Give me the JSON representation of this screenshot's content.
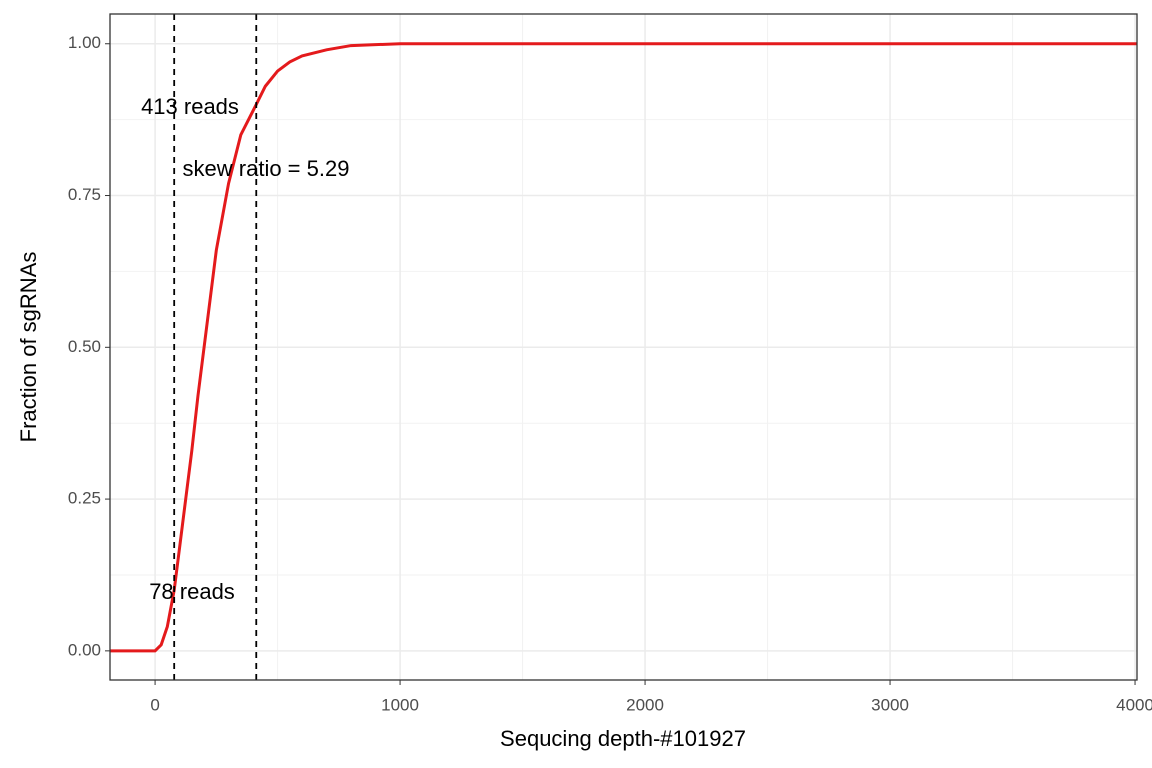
{
  "chart_data": {
    "type": "line",
    "x_label": "Sequcing depth-#101927",
    "y_label": "Fraction of sgRNAs",
    "x": [
      -184,
      0,
      25,
      50,
      78,
      100,
      125,
      150,
      175,
      200,
      250,
      300,
      350,
      413,
      450,
      500,
      550,
      600,
      700,
      800,
      1000,
      1700,
      4008
    ],
    "series": [
      {
        "color": "#e41a1c",
        "values": [
          0,
          0,
          0.01,
          0.04,
          0.1,
          0.17,
          0.25,
          0.33,
          0.42,
          0.5,
          0.66,
          0.77,
          0.85,
          0.9,
          0.93,
          0.955,
          0.97,
          0.98,
          0.99,
          0.997,
          1,
          1,
          1
        ]
      }
    ],
    "xlim": [
      -184,
      4008
    ],
    "ylim": [
      -0.048,
      1.049
    ],
    "xticks": [
      0,
      1000,
      2000,
      3000,
      4000
    ],
    "yticks": [
      {
        "value": 0,
        "label": "0.00"
      },
      {
        "value": 0.25,
        "label": "0.25"
      },
      {
        "value": 0.5,
        "label": "0.50"
      },
      {
        "value": 0.75,
        "label": "0.75"
      },
      {
        "value": 1,
        "label": "1.00"
      }
    ],
    "minor_xticks": [
      500,
      1500,
      2500,
      3500
    ],
    "minor_yticks": [
      0.125,
      0.375,
      0.625,
      0.875
    ],
    "grid": true,
    "vlines": [
      78,
      413
    ],
    "annotations": [
      "413 reads",
      "skew ratio = 5.29",
      "78 reads"
    ]
  }
}
